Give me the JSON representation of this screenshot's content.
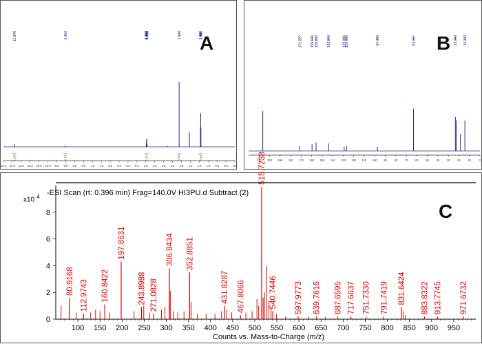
{
  "panels": {
    "a": {
      "letter": "A"
    },
    "b": {
      "letter": "B"
    },
    "c": {
      "letter": "C"
    }
  },
  "colors": {
    "nmr_line": "#1f2d8a",
    "nmr_label": "#1f2d8a",
    "integral": "#2a7a2a",
    "ms_peak": "#e00000",
    "axis": "#000000"
  },
  "chart_data": [
    {
      "id": "A",
      "type": "line",
      "title": "",
      "xlabel": "",
      "ylabel": "",
      "xlim": [
        12.5,
        -0.5
      ],
      "x_ticks": [
        "12.5",
        "12.0",
        "11.5",
        "11.0",
        "10.5",
        "10.0",
        "9.5",
        "9.0",
        "8.5",
        "8.0",
        "7.5",
        "7.0",
        "6.5",
        "6.0",
        "5.5",
        "5.0",
        "4.5",
        "4.0",
        "3.5",
        "3.0",
        "2.5",
        "2.0",
        "1.5",
        "1.0",
        "0.5",
        "0.0",
        "-0.5"
      ],
      "peak_labels": [
        "11.879",
        "9.013",
        "4.474",
        "4.460",
        "4.446",
        "4.431",
        "2.629",
        "1.431",
        "1.417",
        "1.402"
      ],
      "peaks": [
        {
          "x": 11.879,
          "y": 0.04
        },
        {
          "x": 9.013,
          "y": 0.02
        },
        {
          "x": 4.474,
          "y": 0.05
        },
        {
          "x": 4.46,
          "y": 0.12
        },
        {
          "x": 4.446,
          "y": 0.12
        },
        {
          "x": 4.431,
          "y": 0.05
        },
        {
          "x": 2.629,
          "y": 1.0
        },
        {
          "x": 2.05,
          "y": 0.22
        },
        {
          "x": 3.3,
          "y": 0.02
        },
        {
          "x": 1.431,
          "y": 0.3
        },
        {
          "x": 1.417,
          "y": 0.52
        },
        {
          "x": 1.402,
          "y": 0.3
        }
      ],
      "integrals": [
        {
          "x": 11.879,
          "label": "1.00"
        },
        {
          "x": 9.013,
          "label": "0.79"
        },
        {
          "x": 4.45,
          "label": "2.37"
        },
        {
          "x": 2.629,
          "label": "3.08"
        },
        {
          "x": 1.417,
          "label": "3.54"
        }
      ]
    },
    {
      "id": "B",
      "type": "line",
      "title": "",
      "xlabel": "",
      "ylabel": "",
      "xlim": [
        220,
        0
      ],
      "x_ticks": [
        "210",
        "200",
        "190",
        "180",
        "170",
        "160",
        "150",
        "140",
        "130",
        "120",
        "110",
        "100",
        "90",
        "80",
        "70",
        "60",
        "50",
        "40",
        "30",
        "20",
        "10",
        "0"
      ],
      "peak_labels": [
        "171.227",
        "159.646",
        "155.862",
        "143.804",
        "129.086",
        "126.836",
        "97.480",
        "63.167",
        "23.340",
        "14.302"
      ],
      "peaks": [
        {
          "x": 206.5,
          "y": 0.47
        },
        {
          "x": 171.227,
          "y": 0.06
        },
        {
          "x": 159.646,
          "y": 0.08
        },
        {
          "x": 155.862,
          "y": 0.1
        },
        {
          "x": 143.804,
          "y": 0.09
        },
        {
          "x": 129.086,
          "y": 0.05
        },
        {
          "x": 126.836,
          "y": 0.06
        },
        {
          "x": 97.48,
          "y": 0.05
        },
        {
          "x": 63.167,
          "y": 0.5
        },
        {
          "x": 23.34,
          "y": 0.4
        },
        {
          "x": 22.5,
          "y": 0.36
        },
        {
          "x": 18.5,
          "y": 0.2
        },
        {
          "x": 14.302,
          "y": 0.36
        }
      ]
    },
    {
      "id": "C",
      "type": "bar",
      "title": "-ESI Scan (rt: 0.396 min) Frag=140.0V HI3PU.d  Subtract (2)",
      "scale_label": "x10",
      "scale_exp": "4",
      "xlabel": "Counts vs. Mass-to-Charge (m/z)",
      "ylabel": "",
      "xlim": [
        50,
        1000
      ],
      "ylim": [
        0,
        10
      ],
      "x_ticks": [
        "100",
        "150",
        "200",
        "250",
        "300",
        "350",
        "400",
        "450",
        "500",
        "550",
        "600",
        "650",
        "700",
        "750",
        "800",
        "850",
        "900",
        "950"
      ],
      "y_ticks": [
        "0",
        "2",
        "4",
        "6",
        "8"
      ],
      "labeled_peaks": [
        {
          "x": 80.9168,
          "y": 1.6,
          "label": "80.9168"
        },
        {
          "x": 112.9743,
          "y": 0.4,
          "label": "112.9743"
        },
        {
          "x": 160.8422,
          "y": 1.1,
          "label": "160.8422"
        },
        {
          "x": 197.8631,
          "y": 4.3,
          "label": "197.8631"
        },
        {
          "x": 243.8988,
          "y": 0.9,
          "label": "243.8988"
        },
        {
          "x": 271.0828,
          "y": 0.4,
          "label": "271.0828"
        },
        {
          "x": 306.8434,
          "y": 3.8,
          "label": "306.8434"
        },
        {
          "x": 352.8851,
          "y": 3.5,
          "label": "352.8851"
        },
        {
          "x": 431.8287,
          "y": 1.0,
          "label": "431.8287"
        },
        {
          "x": 467.8066,
          "y": 0.3,
          "label": "467.8066"
        },
        {
          "x": 515.7238,
          "y": 9.9,
          "label": "515.7238"
        },
        {
          "x": 540.7446,
          "y": 0.6,
          "label": "540.7446"
        },
        {
          "x": 597.9773,
          "y": 0.2,
          "label": "597.9773"
        },
        {
          "x": 639.7616,
          "y": 0.2,
          "label": "639.7616"
        },
        {
          "x": 687.6595,
          "y": 0.2,
          "label": "687.6595"
        },
        {
          "x": 717.6637,
          "y": 0.2,
          "label": "717.6637"
        },
        {
          "x": 751.733,
          "y": 0.2,
          "label": "751.7330"
        },
        {
          "x": 791.7419,
          "y": 0.2,
          "label": "791.7419"
        },
        {
          "x": 831.6424,
          "y": 0.9,
          "label": "831.6424"
        },
        {
          "x": 883.8322,
          "y": 0.2,
          "label": "883.8322"
        },
        {
          "x": 913.7745,
          "y": 0.2,
          "label": "913.7745"
        },
        {
          "x": 971.6732,
          "y": 0.2,
          "label": "971.6732"
        }
      ],
      "minor_peaks": [
        {
          "x": 62,
          "y": 1.0
        },
        {
          "x": 96,
          "y": 0.5
        },
        {
          "x": 129,
          "y": 0.5
        },
        {
          "x": 140,
          "y": 0.7
        },
        {
          "x": 150,
          "y": 0.6
        },
        {
          "x": 171,
          "y": 0.5
        },
        {
          "x": 227,
          "y": 0.6
        },
        {
          "x": 249,
          "y": 1.0
        },
        {
          "x": 262,
          "y": 0.5
        },
        {
          "x": 289,
          "y": 0.7
        },
        {
          "x": 297,
          "y": 0.9
        },
        {
          "x": 309,
          "y": 2.1
        },
        {
          "x": 316,
          "y": 0.6
        },
        {
          "x": 326,
          "y": 0.5
        },
        {
          "x": 340,
          "y": 0.6
        },
        {
          "x": 356,
          "y": 1.3
        },
        {
          "x": 370,
          "y": 0.4
        },
        {
          "x": 390,
          "y": 0.4
        },
        {
          "x": 410,
          "y": 0.4
        },
        {
          "x": 425,
          "y": 0.6
        },
        {
          "x": 437,
          "y": 0.7
        },
        {
          "x": 448,
          "y": 0.5
        },
        {
          "x": 480,
          "y": 0.5
        },
        {
          "x": 494,
          "y": 0.6
        },
        {
          "x": 505,
          "y": 1.5
        },
        {
          "x": 509,
          "y": 1.0
        },
        {
          "x": 519,
          "y": 1.6
        },
        {
          "x": 522,
          "y": 2.0
        },
        {
          "x": 527,
          "y": 4.0
        },
        {
          "x": 532,
          "y": 1.4
        },
        {
          "x": 537,
          "y": 0.8
        },
        {
          "x": 549,
          "y": 0.4
        },
        {
          "x": 570,
          "y": 0.2
        },
        {
          "x": 622,
          "y": 0.2
        },
        {
          "x": 660,
          "y": 0.15
        },
        {
          "x": 836,
          "y": 0.6
        },
        {
          "x": 841,
          "y": 0.3
        }
      ]
    }
  ]
}
